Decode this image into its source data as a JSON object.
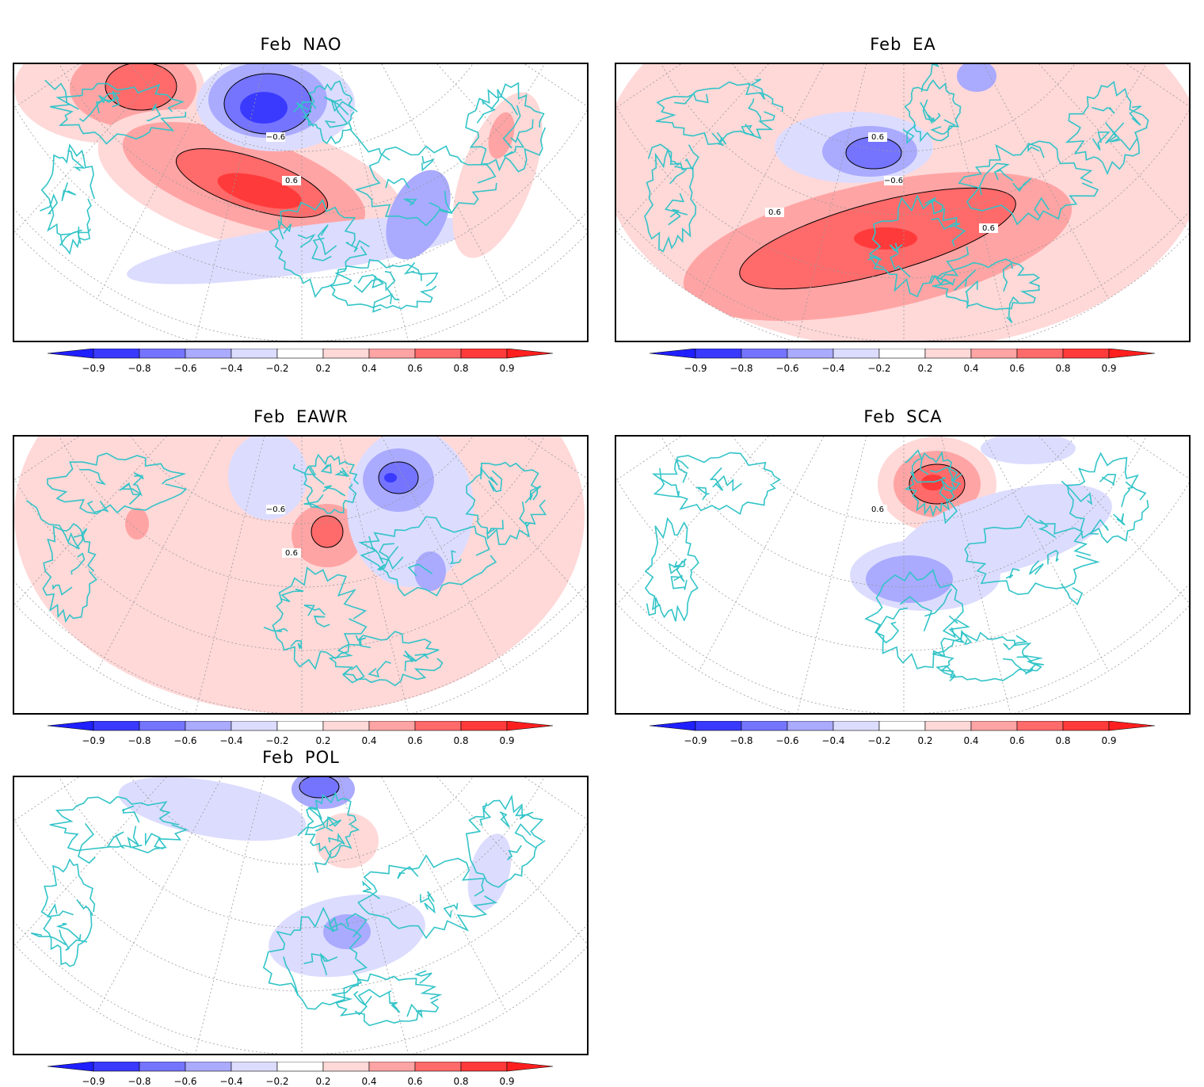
{
  "colors": {
    "coast": "#33c4c8",
    "grid": "#9a9a9a",
    "neg": [
      "#1f1fff",
      "#3a3aff",
      "#7474ff",
      "#aaaaff",
      "#dcdcff"
    ],
    "pos": [
      "#ffd8d8",
      "#ffa4a4",
      "#ff6a6a",
      "#ff3a3a",
      "#ff1f1f"
    ]
  },
  "colorbar": {
    "labels": [
      "−0.9",
      "−0.8",
      "−0.6",
      "−0.4",
      "−0.2",
      "0.2",
      "0.4",
      "0.6",
      "0.8",
      "0.9"
    ]
  },
  "panels": [
    {
      "id": "p1",
      "month": "Feb",
      "index": "NAO",
      "contour_labels": [
        "−0.6",
        "0.6"
      ],
      "features": [
        {
          "sign": "pos",
          "level": 0.2,
          "cx": 120,
          "cy": 30,
          "rx": 120,
          "ry": 70
        },
        {
          "sign": "pos",
          "level": 0.4,
          "cx": 150,
          "cy": 30,
          "rx": 80,
          "ry": 50
        },
        {
          "sign": "pos",
          "level": 0.6,
          "cx": 160,
          "cy": 28,
          "rx": 45,
          "ry": 30
        },
        {
          "sign": "pos",
          "level": 0.2,
          "cx": 300,
          "cy": 150,
          "rx": 200,
          "ry": 80,
          "rot": 15
        },
        {
          "sign": "pos",
          "level": 0.4,
          "cx": 290,
          "cy": 145,
          "rx": 160,
          "ry": 55,
          "rot": 18
        },
        {
          "sign": "pos",
          "level": 0.6,
          "cx": 300,
          "cy": 150,
          "rx": 100,
          "ry": 32,
          "rot": 18
        },
        {
          "sign": "pos",
          "level": 0.8,
          "cx": 310,
          "cy": 160,
          "rx": 55,
          "ry": 18,
          "rot": 15
        },
        {
          "sign": "neg",
          "level": 0.2,
          "cx": 330,
          "cy": 50,
          "rx": 100,
          "ry": 60
        },
        {
          "sign": "neg",
          "level": 0.4,
          "cx": 320,
          "cy": 45,
          "rx": 75,
          "ry": 48
        },
        {
          "sign": "neg",
          "level": 0.6,
          "cx": 320,
          "cy": 50,
          "rx": 55,
          "ry": 38
        },
        {
          "sign": "neg",
          "level": 0.8,
          "cx": 315,
          "cy": 55,
          "rx": 30,
          "ry": 20
        },
        {
          "sign": "neg",
          "level": 0.2,
          "cx": 360,
          "cy": 235,
          "rx": 220,
          "ry": 30,
          "rot": -8
        },
        {
          "sign": "neg",
          "level": 0.4,
          "cx": 510,
          "cy": 190,
          "rx": 35,
          "ry": 60,
          "rot": 25
        },
        {
          "sign": "pos",
          "level": 0.2,
          "cx": 610,
          "cy": 140,
          "rx": 45,
          "ry": 110,
          "rot": 20
        },
        {
          "sign": "pos",
          "level": 0.4,
          "cx": 615,
          "cy": 90,
          "rx": 15,
          "ry": 30,
          "rot": 15
        }
      ]
    },
    {
      "id": "p2",
      "month": "Feb",
      "index": "EA",
      "contour_labels": [
        "0.6",
        "−0.6",
        "0.6",
        "0.6"
      ],
      "features": [
        {
          "sign": "pos",
          "level": 0.2,
          "cx": 363,
          "cy": 120,
          "rx": 380,
          "ry": 240
        },
        {
          "sign": "pos",
          "level": 0.4,
          "cx": 330,
          "cy": 230,
          "rx": 250,
          "ry": 80,
          "rot": -12
        },
        {
          "sign": "pos",
          "level": 0.6,
          "cx": 330,
          "cy": 220,
          "rx": 180,
          "ry": 45,
          "rot": -15
        },
        {
          "sign": "pos",
          "level": 0.8,
          "cx": 340,
          "cy": 220,
          "rx": 40,
          "ry": 14
        },
        {
          "sign": "neg",
          "level": 0.2,
          "cx": 300,
          "cy": 105,
          "rx": 100,
          "ry": 45
        },
        {
          "sign": "neg",
          "level": 0.4,
          "cx": 320,
          "cy": 110,
          "rx": 60,
          "ry": 32
        },
        {
          "sign": "neg",
          "level": 0.6,
          "cx": 325,
          "cy": 112,
          "rx": 35,
          "ry": 20
        },
        {
          "sign": "neg",
          "level": 0.4,
          "cx": 455,
          "cy": 15,
          "rx": 25,
          "ry": 20
        }
      ]
    },
    {
      "id": "p3",
      "month": "Feb",
      "index": "EAWR",
      "contour_labels": [
        "−0.6",
        "0.6"
      ],
      "features": [
        {
          "sign": "pos",
          "level": 0.2,
          "cx": 360,
          "cy": 100,
          "rx": 360,
          "ry": 250
        },
        {
          "sign": "pos",
          "level": 0.4,
          "cx": 395,
          "cy": 125,
          "rx": 45,
          "ry": 40
        },
        {
          "sign": "pos",
          "level": 0.6,
          "cx": 395,
          "cy": 120,
          "rx": 20,
          "ry": 20
        },
        {
          "sign": "pos",
          "level": 0.4,
          "cx": 155,
          "cy": 110,
          "rx": 15,
          "ry": 20
        },
        {
          "sign": "neg",
          "level": 0.2,
          "cx": 320,
          "cy": 50,
          "rx": 50,
          "ry": 55
        },
        {
          "sign": "neg",
          "level": 0.2,
          "cx": 500,
          "cy": 90,
          "rx": 80,
          "ry": 100
        },
        {
          "sign": "neg",
          "level": 0.4,
          "cx": 485,
          "cy": 55,
          "rx": 45,
          "ry": 40
        },
        {
          "sign": "neg",
          "level": 0.6,
          "cx": 485,
          "cy": 52,
          "rx": 25,
          "ry": 20
        },
        {
          "sign": "neg",
          "level": 0.8,
          "cx": 475,
          "cy": 52,
          "rx": 8,
          "ry": 6
        },
        {
          "sign": "neg",
          "level": 0.4,
          "cx": 525,
          "cy": 170,
          "rx": 20,
          "ry": 25
        }
      ]
    },
    {
      "id": "p4",
      "month": "Feb",
      "index": "SCA",
      "contour_labels": [
        "0.6"
      ],
      "features": [
        {
          "sign": "pos",
          "level": 0.2,
          "cx": 405,
          "cy": 60,
          "rx": 75,
          "ry": 60
        },
        {
          "sign": "pos",
          "level": 0.4,
          "cx": 405,
          "cy": 60,
          "rx": 55,
          "ry": 42
        },
        {
          "sign": "pos",
          "level": 0.6,
          "cx": 405,
          "cy": 60,
          "rx": 35,
          "ry": 25
        },
        {
          "sign": "pos",
          "level": 0.8,
          "cx": 400,
          "cy": 58,
          "rx": 15,
          "ry": 10
        },
        {
          "sign": "neg",
          "level": 0.2,
          "cx": 490,
          "cy": 120,
          "rx": 140,
          "ry": 50,
          "rot": -15
        },
        {
          "sign": "neg",
          "level": 0.2,
          "cx": 390,
          "cy": 175,
          "rx": 95,
          "ry": 45
        },
        {
          "sign": "neg",
          "level": 0.4,
          "cx": 370,
          "cy": 180,
          "rx": 55,
          "ry": 30
        },
        {
          "sign": "neg",
          "level": 0.2,
          "cx": 520,
          "cy": 15,
          "rx": 60,
          "ry": 20
        }
      ]
    },
    {
      "id": "p5",
      "month": "Feb",
      "index": "POL",
      "contour_labels": [],
      "features": [
        {
          "sign": "neg",
          "level": 0.2,
          "cx": 250,
          "cy": 40,
          "rx": 120,
          "ry": 35,
          "rot": 10
        },
        {
          "sign": "neg",
          "level": 0.4,
          "cx": 390,
          "cy": 15,
          "rx": 40,
          "ry": 25
        },
        {
          "sign": "neg",
          "level": 0.6,
          "cx": 385,
          "cy": 12,
          "rx": 25,
          "ry": 14
        },
        {
          "sign": "pos",
          "level": 0.2,
          "cx": 420,
          "cy": 80,
          "rx": 40,
          "ry": 35
        },
        {
          "sign": "neg",
          "level": 0.2,
          "cx": 420,
          "cy": 200,
          "rx": 100,
          "ry": 50,
          "rot": -10
        },
        {
          "sign": "neg",
          "level": 0.4,
          "cx": 420,
          "cy": 195,
          "rx": 30,
          "ry": 22
        },
        {
          "sign": "neg",
          "level": 0.2,
          "cx": 600,
          "cy": 120,
          "rx": 25,
          "ry": 50,
          "rot": 15
        }
      ]
    }
  ]
}
